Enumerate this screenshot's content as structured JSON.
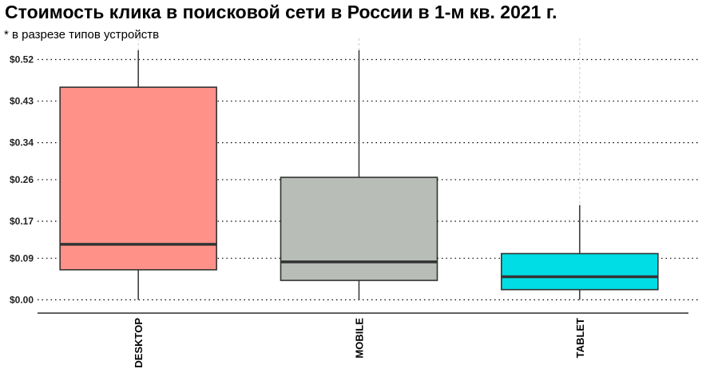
{
  "chart_data": {
    "type": "boxplot",
    "title": "Стоимость клика в поисковой сети в России в 1-м кв. 2021 г.",
    "subtitle": "* в разрезе типов устройств",
    "xlabel": "",
    "ylabel": "",
    "ylim": [
      -0.008,
      0.545
    ],
    "yticks": [
      0.0,
      0.09,
      0.17,
      0.26,
      0.34,
      0.43,
      0.52
    ],
    "ytick_labels": [
      "$0.00",
      "$0.09",
      "$0.17",
      "$0.26",
      "$0.34",
      "$0.43",
      "$0.52"
    ],
    "grid": "horizontal dotted",
    "categories": [
      "DESKTOP",
      "MOBILE",
      "TABLET"
    ],
    "boxes": [
      {
        "category": "DESKTOP",
        "min": 0.0,
        "q1": 0.065,
        "median": 0.12,
        "q3": 0.46,
        "max": 0.54,
        "color": "#FF9189"
      },
      {
        "category": "MOBILE",
        "min": 0.0,
        "q1": 0.042,
        "median": 0.082,
        "q3": 0.265,
        "max": 0.54,
        "color": "#B8BEB7"
      },
      {
        "category": "TABLET",
        "min": 0.0,
        "q1": 0.022,
        "median": 0.05,
        "q3": 0.1,
        "max": 0.205,
        "color": "#00DDE5"
      }
    ]
  }
}
